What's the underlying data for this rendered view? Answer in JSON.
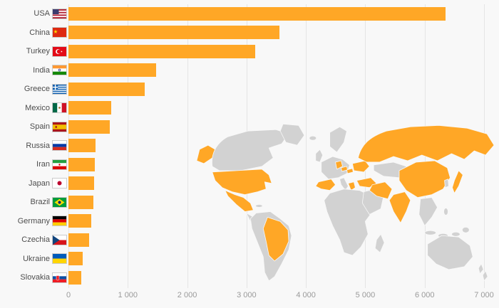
{
  "background_color": "#f8f8f8",
  "chart_data": {
    "type": "bar",
    "orientation": "horizontal",
    "title": "",
    "xlabel": "",
    "ylabel": "",
    "grid": true,
    "categories": [
      "USA",
      "China",
      "Turkey",
      "India",
      "Greece",
      "Mexico",
      "Spain",
      "Russia",
      "Iran",
      "Japan",
      "Brazil",
      "Germany",
      "Czechia",
      "Ukraine",
      "Slovakia"
    ],
    "values": [
      6350,
      3550,
      3150,
      1480,
      1280,
      720,
      690,
      460,
      445,
      435,
      420,
      385,
      350,
      240,
      215
    ],
    "xlim": [
      0,
      7000
    ],
    "x_ticks": [
      0,
      1000,
      2000,
      3000,
      4000,
      5000,
      6000,
      7000
    ],
    "x_tick_labels": [
      "0",
      "1 000",
      "2 000",
      "3 000",
      "4 000",
      "5 000",
      "6 000",
      "7 000"
    ],
    "bar_color": "#FFA726"
  },
  "map": {
    "base_color": "#d2d2d2",
    "highlight_color": "#FFA726",
    "highlighted_countries": [
      "USA",
      "China",
      "Turkey",
      "India",
      "Greece",
      "Mexico",
      "Spain",
      "Russia",
      "Iran",
      "Japan",
      "Brazil",
      "Germany",
      "Czechia",
      "Ukraine",
      "Slovakia"
    ]
  },
  "flags": {
    "USA": "flag-usa-icon",
    "China": "flag-china-icon",
    "Turkey": "flag-turkey-icon",
    "India": "flag-india-icon",
    "Greece": "flag-greece-icon",
    "Mexico": "flag-mexico-icon",
    "Spain": "flag-spain-icon",
    "Russia": "flag-russia-icon",
    "Iran": "flag-iran-icon",
    "Japan": "flag-japan-icon",
    "Brazil": "flag-brazil-icon",
    "Germany": "flag-germany-icon",
    "Czechia": "flag-czechia-icon",
    "Ukraine": "flag-ukraine-icon",
    "Slovakia": "flag-slovakia-icon"
  }
}
